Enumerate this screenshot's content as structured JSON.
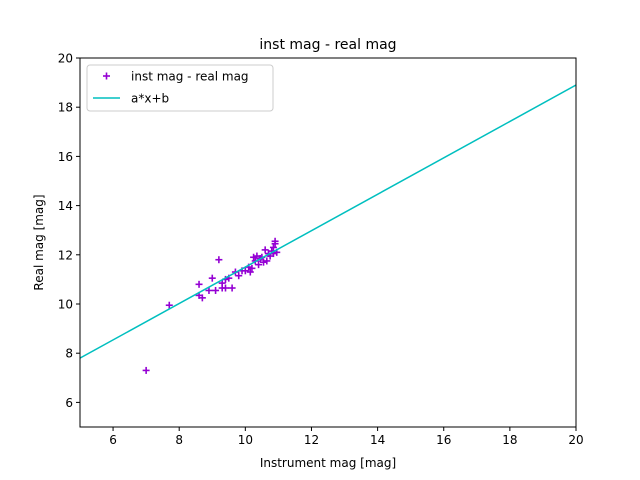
{
  "chart_data": {
    "type": "scatter",
    "title": "inst mag - real mag",
    "xlabel": "Instrument mag [mag]",
    "ylabel": "Real mag [mag]",
    "xlim": [
      5,
      20
    ],
    "ylim": [
      5,
      20
    ],
    "xticks": [
      6,
      8,
      10,
      12,
      14,
      16,
      18,
      20
    ],
    "yticks": [
      6,
      8,
      10,
      12,
      14,
      16,
      18,
      20
    ],
    "grid": false,
    "legend_position": "upper-left",
    "series": [
      {
        "name": "inst mag - real mag",
        "kind": "scatter",
        "marker": "+",
        "color": "#9400d3",
        "points": [
          [
            7.0,
            7.3
          ],
          [
            7.7,
            9.95
          ],
          [
            8.6,
            10.8
          ],
          [
            8.6,
            10.35
          ],
          [
            8.7,
            10.25
          ],
          [
            8.9,
            10.55
          ],
          [
            9.0,
            11.05
          ],
          [
            9.1,
            10.55
          ],
          [
            9.2,
            11.8
          ],
          [
            9.3,
            10.65
          ],
          [
            9.3,
            10.85
          ],
          [
            9.4,
            11.0
          ],
          [
            9.4,
            10.65
          ],
          [
            9.5,
            11.05
          ],
          [
            9.6,
            10.65
          ],
          [
            9.7,
            11.3
          ],
          [
            9.8,
            11.15
          ],
          [
            9.9,
            11.35
          ],
          [
            10.0,
            11.35
          ],
          [
            10.1,
            11.5
          ],
          [
            10.15,
            11.3
          ],
          [
            10.2,
            11.45
          ],
          [
            10.25,
            11.9
          ],
          [
            10.3,
            11.75
          ],
          [
            10.35,
            11.95
          ],
          [
            10.4,
            11.6
          ],
          [
            10.45,
            11.85
          ],
          [
            10.5,
            11.9
          ],
          [
            10.55,
            11.7
          ],
          [
            10.6,
            12.2
          ],
          [
            10.65,
            11.75
          ],
          [
            10.7,
            12.05
          ],
          [
            10.75,
            11.95
          ],
          [
            10.8,
            12.15
          ],
          [
            10.85,
            12.05
          ],
          [
            10.85,
            12.3
          ],
          [
            10.9,
            12.45
          ],
          [
            10.9,
            12.55
          ],
          [
            10.95,
            12.1
          ]
        ]
      },
      {
        "name": "a*x+b",
        "kind": "line",
        "color": "#00bfbf",
        "x": [
          5,
          20
        ],
        "y": [
          7.8,
          18.9
        ]
      }
    ]
  }
}
